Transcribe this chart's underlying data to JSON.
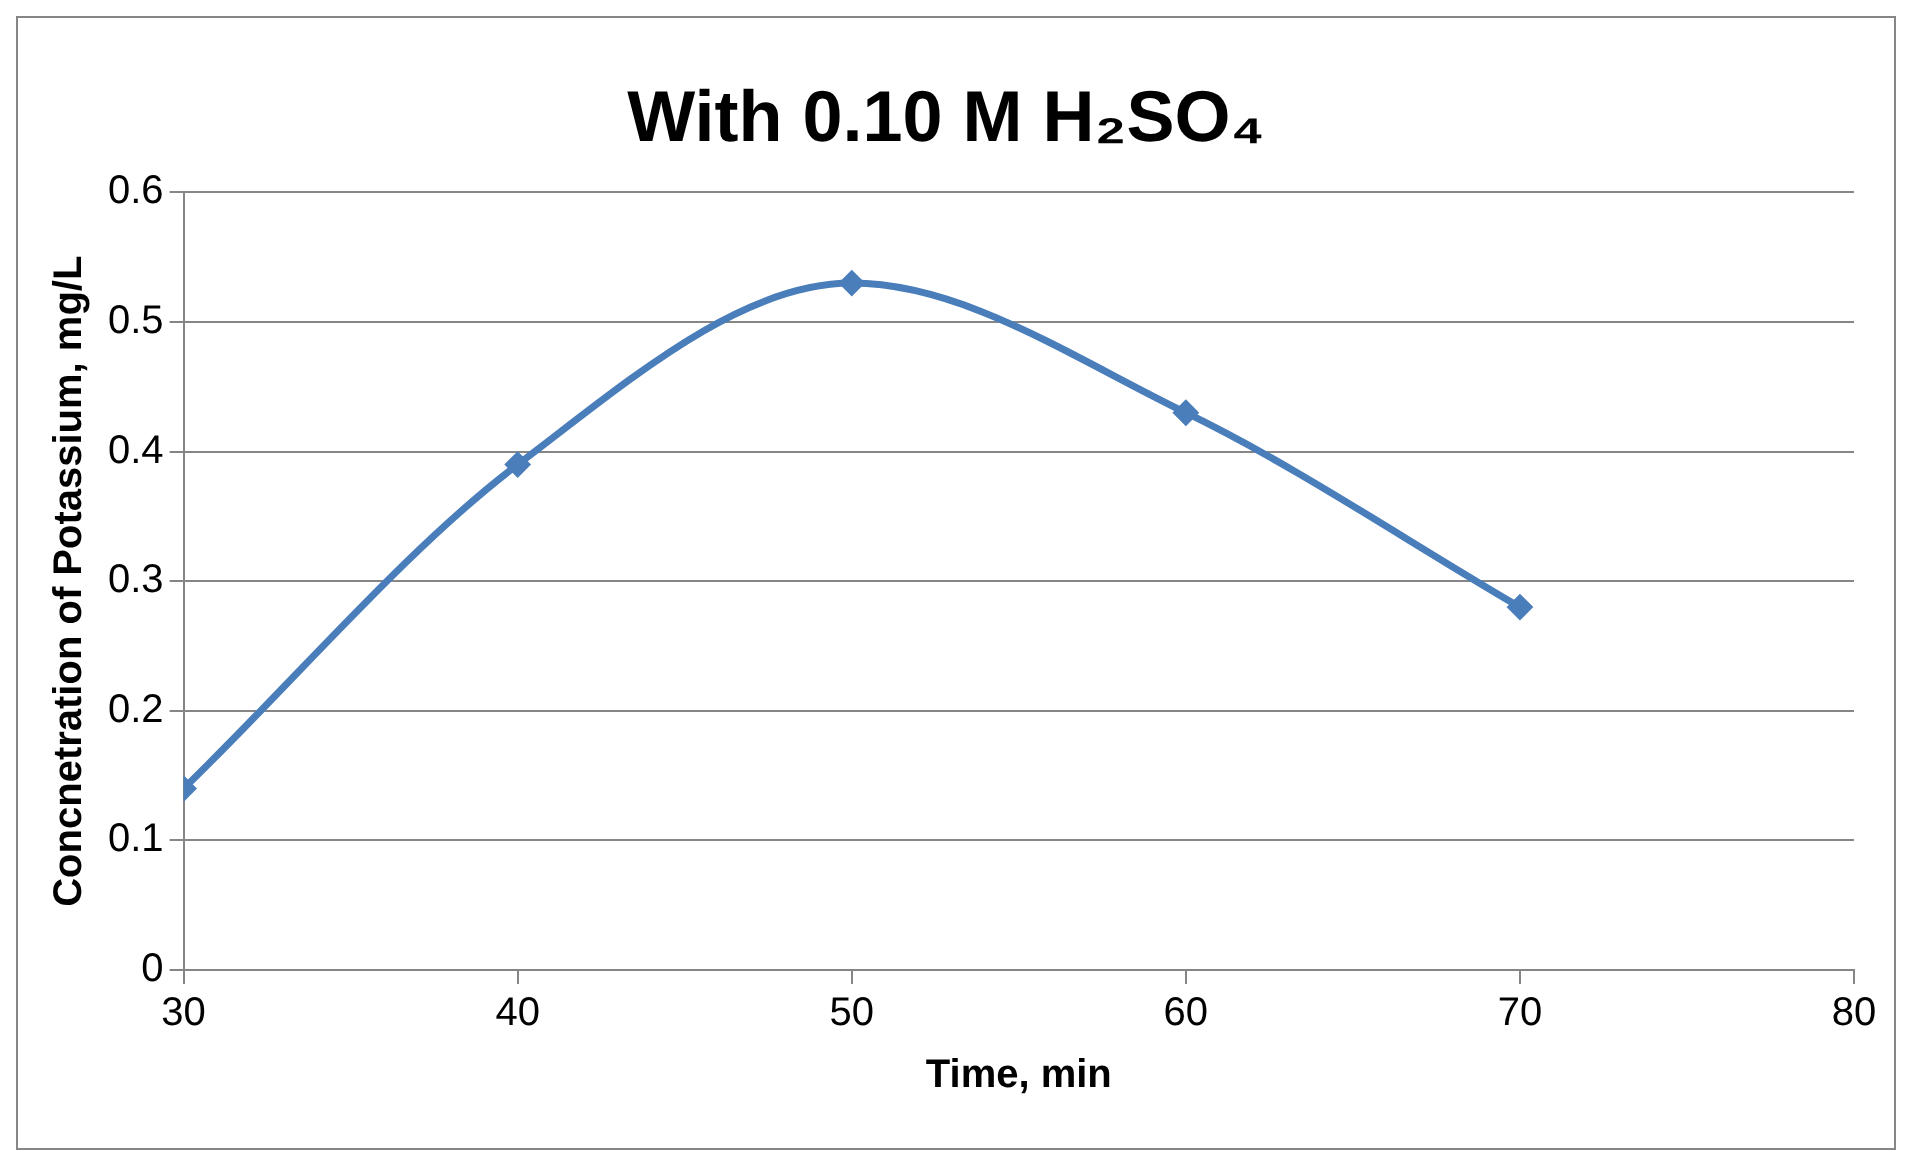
{
  "chart_data": {
    "type": "line",
    "title": "With 0.10 M H₂SO₄",
    "xlabel": "Time, min",
    "ylabel": "Concnetration of Potassium, mg/L",
    "x": [
      30,
      40,
      50,
      60,
      70
    ],
    "series": [
      {
        "color": "#4a7ebb",
        "values": [
          0.14,
          0.39,
          0.53,
          0.43,
          0.28
        ]
      }
    ],
    "xlim": [
      30,
      80
    ],
    "xticks": [
      30,
      40,
      50,
      60,
      70,
      80
    ],
    "ylim": [
      0,
      0.6
    ],
    "yticks": [
      0,
      0.1,
      0.2,
      0.3,
      0.4,
      0.5,
      0.6
    ],
    "grid": "y",
    "legend": false,
    "marker": "diamond",
    "line_style": "solid"
  }
}
